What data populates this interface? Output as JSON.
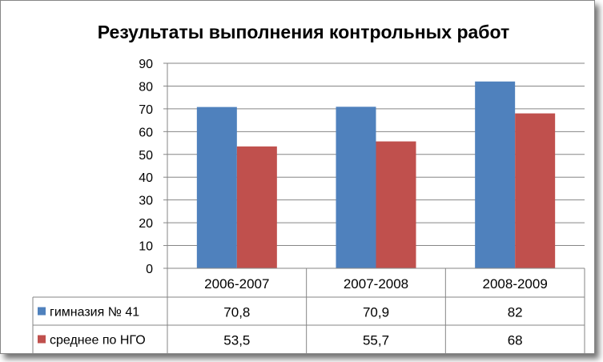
{
  "chart_data": {
    "type": "bar",
    "title": "Результаты выполнения контрольных работ",
    "categories": [
      "2006-2007",
      "2007-2008",
      "2008-2009"
    ],
    "series": [
      {
        "name": "гимназия № 41",
        "values": [
          70.8,
          70.9,
          82
        ],
        "labels": [
          "70,8",
          "70,9",
          "82"
        ],
        "color": "#4f81bd"
      },
      {
        "name": "среднее по НГО",
        "values": [
          53.5,
          55.7,
          68
        ],
        "labels": [
          "53,5",
          "55,7",
          "68"
        ],
        "color": "#c0504d"
      }
    ],
    "ylim": [
      0,
      90
    ],
    "yticks": [
      0,
      10,
      20,
      30,
      40,
      50,
      60,
      70,
      80,
      90
    ],
    "grid": true,
    "legend": "data-table-left"
  }
}
